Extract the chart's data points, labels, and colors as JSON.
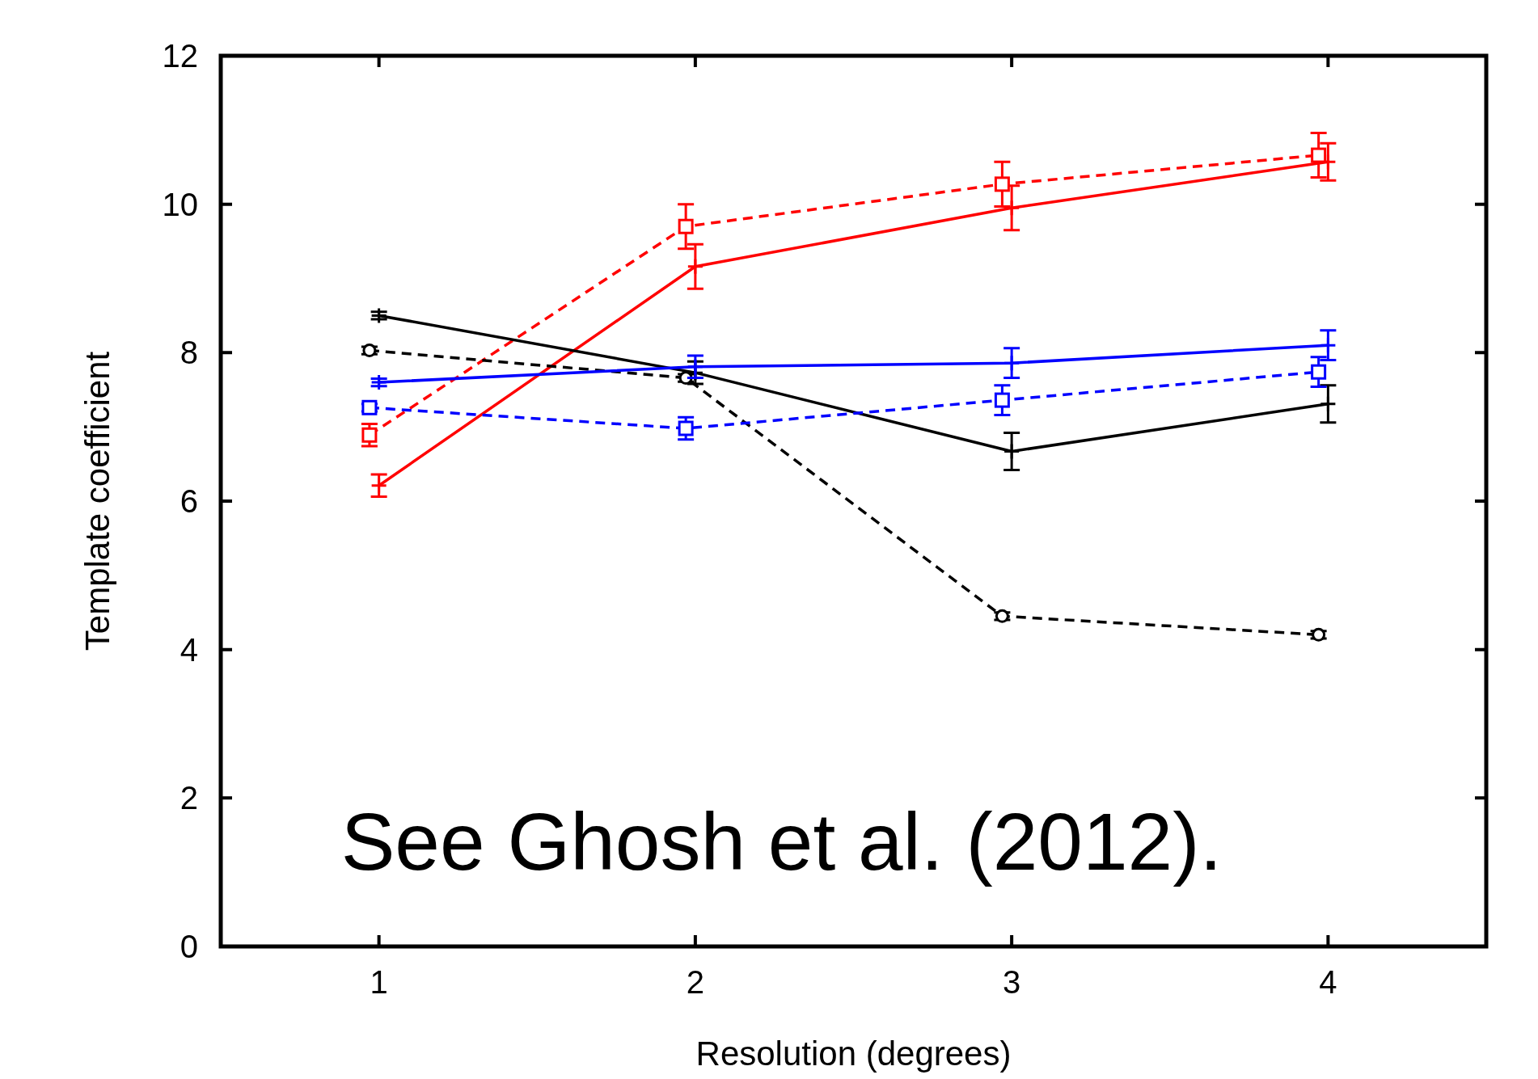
{
  "chart_data": {
    "type": "line",
    "xlabel": "Resolution (degrees)",
    "ylabel": "Template coefficient",
    "xlim": [
      0.5,
      4.5
    ],
    "ylim": [
      0,
      12
    ],
    "xticks": [
      1,
      2,
      3,
      4
    ],
    "yticks": [
      0,
      2,
      4,
      6,
      8,
      10,
      12
    ],
    "grid": false,
    "annotations": [
      "See Ghosh et al. (2012)."
    ],
    "series": [
      {
        "color": "#ff0000",
        "x": [
          1,
          2,
          3,
          4
        ],
        "values": [
          6.21,
          9.16,
          9.95,
          10.57
        ],
        "errors": [
          0.15,
          0.3,
          0.3,
          0.25
        ],
        "marker": "cross",
        "line_style": "solid"
      },
      {
        "color": "#ff0000",
        "x": [
          0.97,
          1.97,
          2.97,
          3.97
        ],
        "values": [
          6.89,
          9.7,
          10.27,
          10.66
        ],
        "errors": [
          0.15,
          0.3,
          0.3,
          0.3
        ],
        "marker": "square",
        "line_style": "dashed"
      },
      {
        "color": "#000000",
        "x": [
          1,
          2,
          3,
          4
        ],
        "values": [
          8.5,
          7.73,
          6.67,
          7.31
        ],
        "errors": [
          0.05,
          0.15,
          0.25,
          0.25
        ],
        "marker": "cross",
        "line_style": "solid"
      },
      {
        "color": "#000000",
        "x": [
          0.97,
          1.97,
          2.97,
          3.97
        ],
        "values": [
          8.03,
          7.66,
          4.45,
          4.2
        ],
        "errors": [
          0.05,
          0.05,
          0.05,
          0.05
        ],
        "marker": "circle",
        "line_style": "dashed"
      },
      {
        "color": "#0000ff",
        "x": [
          1,
          2,
          3,
          4
        ],
        "values": [
          7.6,
          7.81,
          7.86,
          8.1
        ],
        "errors": [
          0.05,
          0.15,
          0.2,
          0.2
        ],
        "marker": "cross",
        "line_style": "solid"
      },
      {
        "color": "#0000ff",
        "x": [
          0.97,
          1.97,
          2.97,
          3.97
        ],
        "values": [
          7.26,
          6.98,
          7.36,
          7.74
        ],
        "errors": [
          0.05,
          0.15,
          0.2,
          0.2
        ],
        "marker": "square",
        "line_style": "dashed"
      }
    ]
  }
}
